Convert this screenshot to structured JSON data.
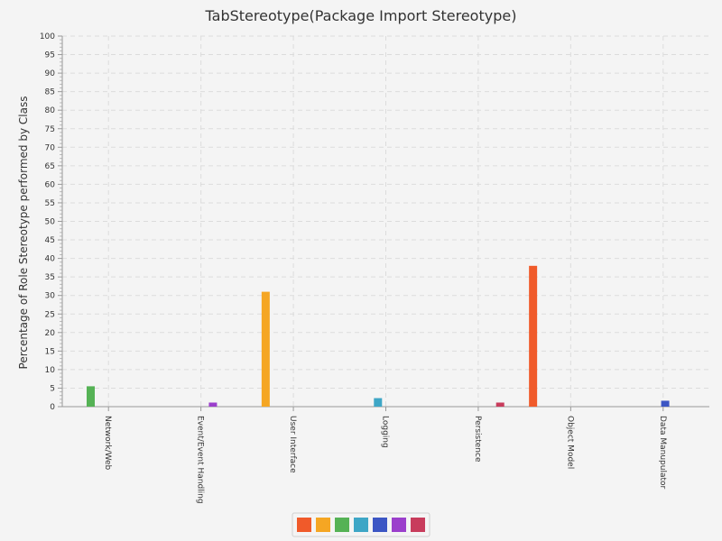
{
  "chart_data": {
    "type": "bar",
    "title": "TabStereotype(Package Import Stereotype)",
    "xlabel": "",
    "ylabel": "Percentage of Role Stereotype performed by Class",
    "ylim": [
      0,
      100
    ],
    "ytick_step": 5,
    "grid": true,
    "legend_position": "bottom",
    "categories": [
      "Network/Web",
      "Event/Event Handling",
      "User Interface",
      "Logging",
      "Persistence",
      "Object Model",
      "Data Manupulator"
    ],
    "series": [
      {
        "color": "#f05a2a",
        "values": [
          0,
          0,
          0,
          0,
          0,
          38,
          0
        ]
      },
      {
        "color": "#f5a623",
        "values": [
          0,
          0,
          31,
          0,
          0,
          0,
          0
        ]
      },
      {
        "color": "#55b255",
        "values": [
          5.5,
          0,
          0,
          0,
          0,
          0,
          0
        ]
      },
      {
        "color": "#3ea6c6",
        "values": [
          0,
          0,
          0,
          2.3,
          0,
          0,
          0
        ]
      },
      {
        "color": "#3c56c4",
        "values": [
          0,
          0,
          0,
          0,
          0,
          0,
          1.6
        ]
      },
      {
        "color": "#9b3fcc",
        "values": [
          0,
          1.1,
          0,
          0,
          0,
          0,
          0
        ]
      },
      {
        "color": "#c83c5c",
        "values": [
          0,
          0,
          0,
          0,
          1.1,
          0,
          0
        ]
      }
    ]
  }
}
